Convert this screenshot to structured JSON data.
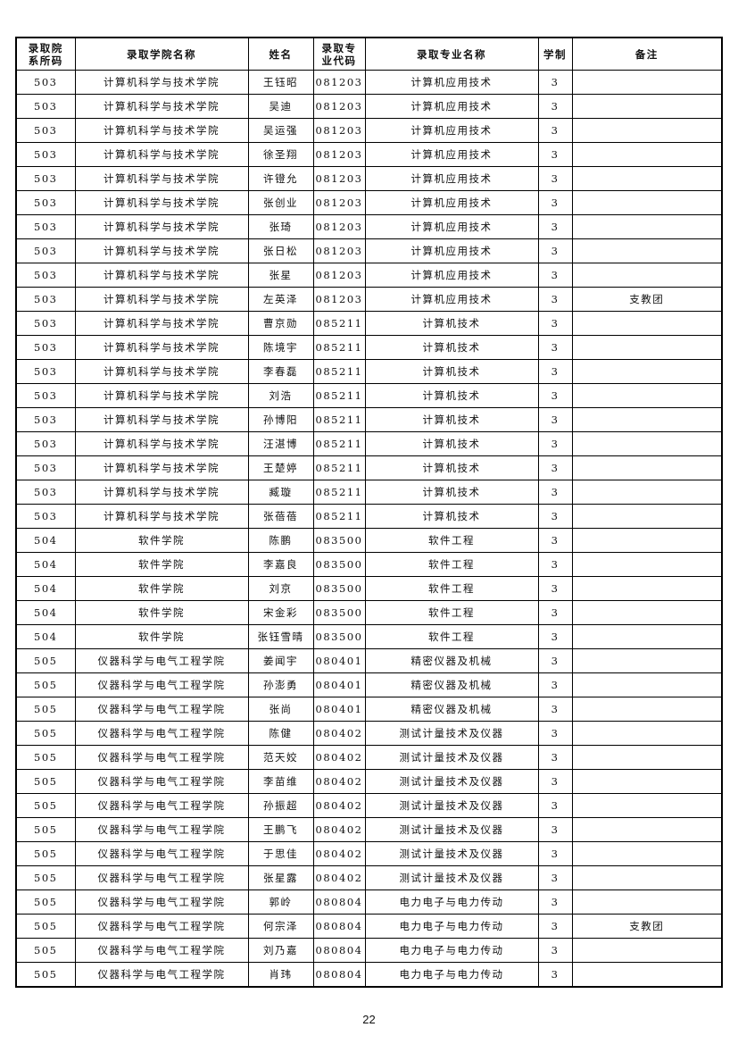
{
  "headers": {
    "dept_code": "录取院\n系所码",
    "college": "录取学院名称",
    "name": "姓名",
    "major_code": "录取专\n业代码",
    "major": "录取专业名称",
    "years": "学制",
    "note": "备注"
  },
  "rows": [
    {
      "dept_code": "503",
      "college": "计算机科学与技术学院",
      "name": "王钰昭",
      "major_code": "081203",
      "major": "计算机应用技术",
      "years": "3",
      "note": ""
    },
    {
      "dept_code": "503",
      "college": "计算机科学与技术学院",
      "name": "吴迪",
      "major_code": "081203",
      "major": "计算机应用技术",
      "years": "3",
      "note": ""
    },
    {
      "dept_code": "503",
      "college": "计算机科学与技术学院",
      "name": "吴运强",
      "major_code": "081203",
      "major": "计算机应用技术",
      "years": "3",
      "note": ""
    },
    {
      "dept_code": "503",
      "college": "计算机科学与技术学院",
      "name": "徐圣翔",
      "major_code": "081203",
      "major": "计算机应用技术",
      "years": "3",
      "note": ""
    },
    {
      "dept_code": "503",
      "college": "计算机科学与技术学院",
      "name": "许镫允",
      "major_code": "081203",
      "major": "计算机应用技术",
      "years": "3",
      "note": ""
    },
    {
      "dept_code": "503",
      "college": "计算机科学与技术学院",
      "name": "张创业",
      "major_code": "081203",
      "major": "计算机应用技术",
      "years": "3",
      "note": ""
    },
    {
      "dept_code": "503",
      "college": "计算机科学与技术学院",
      "name": "张琦",
      "major_code": "081203",
      "major": "计算机应用技术",
      "years": "3",
      "note": ""
    },
    {
      "dept_code": "503",
      "college": "计算机科学与技术学院",
      "name": "张日松",
      "major_code": "081203",
      "major": "计算机应用技术",
      "years": "3",
      "note": ""
    },
    {
      "dept_code": "503",
      "college": "计算机科学与技术学院",
      "name": "张星",
      "major_code": "081203",
      "major": "计算机应用技术",
      "years": "3",
      "note": ""
    },
    {
      "dept_code": "503",
      "college": "计算机科学与技术学院",
      "name": "左英泽",
      "major_code": "081203",
      "major": "计算机应用技术",
      "years": "3",
      "note": "支教团"
    },
    {
      "dept_code": "503",
      "college": "计算机科学与技术学院",
      "name": "曹京勋",
      "major_code": "085211",
      "major": "计算机技术",
      "years": "3",
      "note": ""
    },
    {
      "dept_code": "503",
      "college": "计算机科学与技术学院",
      "name": "陈境宇",
      "major_code": "085211",
      "major": "计算机技术",
      "years": "3",
      "note": ""
    },
    {
      "dept_code": "503",
      "college": "计算机科学与技术学院",
      "name": "李春磊",
      "major_code": "085211",
      "major": "计算机技术",
      "years": "3",
      "note": ""
    },
    {
      "dept_code": "503",
      "college": "计算机科学与技术学院",
      "name": "刘浩",
      "major_code": "085211",
      "major": "计算机技术",
      "years": "3",
      "note": ""
    },
    {
      "dept_code": "503",
      "college": "计算机科学与技术学院",
      "name": "孙博阳",
      "major_code": "085211",
      "major": "计算机技术",
      "years": "3",
      "note": ""
    },
    {
      "dept_code": "503",
      "college": "计算机科学与技术学院",
      "name": "汪湛博",
      "major_code": "085211",
      "major": "计算机技术",
      "years": "3",
      "note": ""
    },
    {
      "dept_code": "503",
      "college": "计算机科学与技术学院",
      "name": "王楚婷",
      "major_code": "085211",
      "major": "计算机技术",
      "years": "3",
      "note": ""
    },
    {
      "dept_code": "503",
      "college": "计算机科学与技术学院",
      "name": "臧璇",
      "major_code": "085211",
      "major": "计算机技术",
      "years": "3",
      "note": ""
    },
    {
      "dept_code": "503",
      "college": "计算机科学与技术学院",
      "name": "张蓓蓓",
      "major_code": "085211",
      "major": "计算机技术",
      "years": "3",
      "note": ""
    },
    {
      "dept_code": "504",
      "college": "软件学院",
      "name": "陈鹏",
      "major_code": "083500",
      "major": "软件工程",
      "years": "3",
      "note": ""
    },
    {
      "dept_code": "504",
      "college": "软件学院",
      "name": "李嘉良",
      "major_code": "083500",
      "major": "软件工程",
      "years": "3",
      "note": ""
    },
    {
      "dept_code": "504",
      "college": "软件学院",
      "name": "刘京",
      "major_code": "083500",
      "major": "软件工程",
      "years": "3",
      "note": ""
    },
    {
      "dept_code": "504",
      "college": "软件学院",
      "name": "宋金彩",
      "major_code": "083500",
      "major": "软件工程",
      "years": "3",
      "note": ""
    },
    {
      "dept_code": "504",
      "college": "软件学院",
      "name": "张钰雪晴",
      "major_code": "083500",
      "major": "软件工程",
      "years": "3",
      "note": ""
    },
    {
      "dept_code": "505",
      "college": "仪器科学与电气工程学院",
      "name": "姜闻宇",
      "major_code": "080401",
      "major": "精密仪器及机械",
      "years": "3",
      "note": ""
    },
    {
      "dept_code": "505",
      "college": "仪器科学与电气工程学院",
      "name": "孙澎勇",
      "major_code": "080401",
      "major": "精密仪器及机械",
      "years": "3",
      "note": ""
    },
    {
      "dept_code": "505",
      "college": "仪器科学与电气工程学院",
      "name": "张尚",
      "major_code": "080401",
      "major": "精密仪器及机械",
      "years": "3",
      "note": ""
    },
    {
      "dept_code": "505",
      "college": "仪器科学与电气工程学院",
      "name": "陈健",
      "major_code": "080402",
      "major": "测试计量技术及仪器",
      "years": "3",
      "note": ""
    },
    {
      "dept_code": "505",
      "college": "仪器科学与电气工程学院",
      "name": "范天姣",
      "major_code": "080402",
      "major": "测试计量技术及仪器",
      "years": "3",
      "note": ""
    },
    {
      "dept_code": "505",
      "college": "仪器科学与电气工程学院",
      "name": "李苗维",
      "major_code": "080402",
      "major": "测试计量技术及仪器",
      "years": "3",
      "note": ""
    },
    {
      "dept_code": "505",
      "college": "仪器科学与电气工程学院",
      "name": "孙振超",
      "major_code": "080402",
      "major": "测试计量技术及仪器",
      "years": "3",
      "note": ""
    },
    {
      "dept_code": "505",
      "college": "仪器科学与电气工程学院",
      "name": "王鹏飞",
      "major_code": "080402",
      "major": "测试计量技术及仪器",
      "years": "3",
      "note": ""
    },
    {
      "dept_code": "505",
      "college": "仪器科学与电气工程学院",
      "name": "于思佳",
      "major_code": "080402",
      "major": "测试计量技术及仪器",
      "years": "3",
      "note": ""
    },
    {
      "dept_code": "505",
      "college": "仪器科学与电气工程学院",
      "name": "张星露",
      "major_code": "080402",
      "major": "测试计量技术及仪器",
      "years": "3",
      "note": ""
    },
    {
      "dept_code": "505",
      "college": "仪器科学与电气工程学院",
      "name": "郭岭",
      "major_code": "080804",
      "major": "电力电子与电力传动",
      "years": "3",
      "note": ""
    },
    {
      "dept_code": "505",
      "college": "仪器科学与电气工程学院",
      "name": "何宗泽",
      "major_code": "080804",
      "major": "电力电子与电力传动",
      "years": "3",
      "note": "支教团"
    },
    {
      "dept_code": "505",
      "college": "仪器科学与电气工程学院",
      "name": "刘乃嘉",
      "major_code": "080804",
      "major": "电力电子与电力传动",
      "years": "3",
      "note": ""
    },
    {
      "dept_code": "505",
      "college": "仪器科学与电气工程学院",
      "name": "肖玮",
      "major_code": "080804",
      "major": "电力电子与电力传动",
      "years": "3",
      "note": ""
    }
  ],
  "page_number": "22"
}
